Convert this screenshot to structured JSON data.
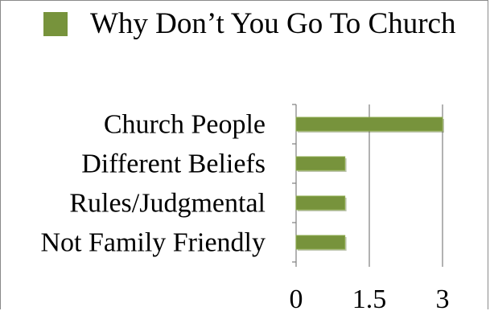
{
  "colors": {
    "bar_fill": "#77933c",
    "bar_highlight": "#8eab4e",
    "bar_shadow": "#4a5f22",
    "grid": "#7f7f7f",
    "frame": "#8a8a8a"
  },
  "chart_data": {
    "type": "bar",
    "orientation": "horizontal",
    "title": "",
    "xlabel": "",
    "ylabel": "",
    "categories": [
      "Church People",
      "Different Beliefs",
      "Rules/Judgmental",
      "Not Family Friendly"
    ],
    "series": [
      {
        "name": "Why Don’t You Go To Church",
        "values": [
          3,
          1,
          1,
          1
        ]
      }
    ],
    "xlim": [
      0,
      3
    ],
    "xticks": [
      0,
      1.5,
      3
    ],
    "xtick_labels": [
      "0",
      "1.5",
      "3"
    ],
    "grid": "vertical",
    "legend_position": "top"
  }
}
